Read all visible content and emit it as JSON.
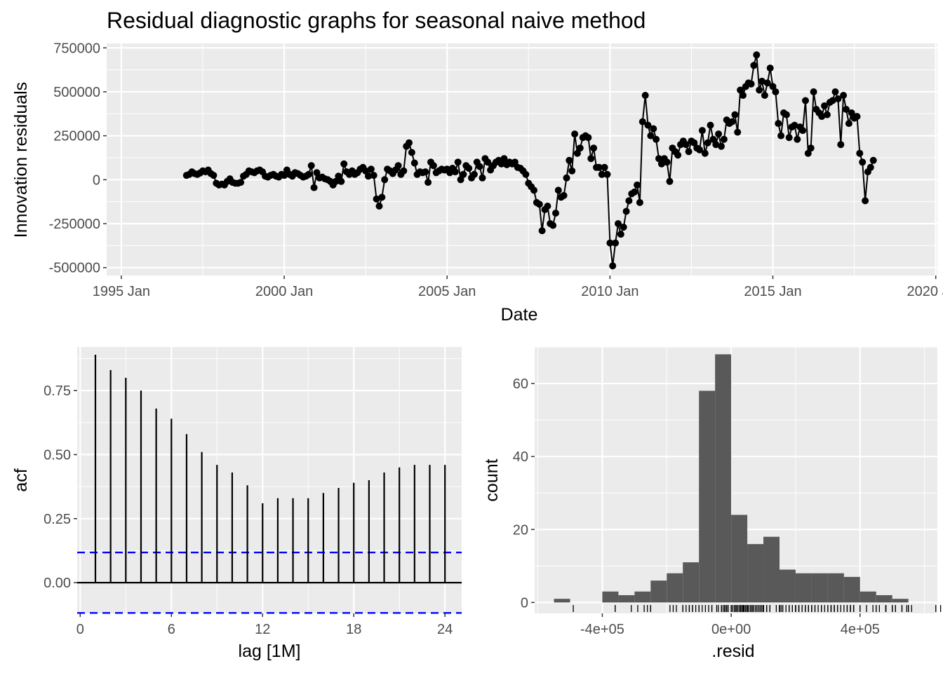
{
  "chart_data": [
    {
      "type": "line",
      "title": "Residual diagnostic graphs for seasonal naive method",
      "xlabel": "Date",
      "ylabel": "Innovation residuals",
      "xlim": [
        "1995 Jan",
        "2020 Jan"
      ],
      "ylim": [
        -500000,
        750000
      ],
      "x_ticks": [
        "1995 Jan",
        "2000 Jan",
        "2005 Jan",
        "2010 Jan",
        "2015 Jan",
        "2020 Jan"
      ],
      "y_ticks": [
        "750000",
        "500000",
        "250000",
        "0",
        "-250000",
        "-500000"
      ],
      "y_tick_values": [
        750000,
        500000,
        250000,
        0,
        -250000,
        -500000
      ],
      "grid": true,
      "x_start": "1997 Jan",
      "x_step": "1 month",
      "values": [
        25000,
        30000,
        45000,
        35000,
        30000,
        38000,
        50000,
        45000,
        55000,
        35000,
        25000,
        -20000,
        -30000,
        -25000,
        -30000,
        -10000,
        5000,
        -15000,
        -20000,
        -20000,
        -15000,
        20000,
        30000,
        50000,
        45000,
        40000,
        50000,
        55000,
        45000,
        20000,
        15000,
        25000,
        30000,
        20000,
        15000,
        30000,
        25000,
        55000,
        30000,
        20000,
        40000,
        35000,
        25000,
        15000,
        20000,
        30000,
        80000,
        -45000,
        40000,
        10000,
        15000,
        5000,
        0,
        -10000,
        -30000,
        -10000,
        20000,
        -10000,
        90000,
        45000,
        30000,
        50000,
        30000,
        40000,
        60000,
        70000,
        50000,
        20000,
        60000,
        25000,
        -110000,
        -150000,
        -100000,
        0,
        60000,
        50000,
        35000,
        55000,
        80000,
        30000,
        50000,
        190000,
        210000,
        155000,
        95000,
        30000,
        45000,
        40000,
        45000,
        -15000,
        100000,
        80000,
        40000,
        50000,
        60000,
        55000,
        60000,
        40000,
        65000,
        45000,
        100000,
        0,
        30000,
        80000,
        65000,
        10000,
        30000,
        100000,
        75000,
        10000,
        120000,
        100000,
        55000,
        80000,
        100000,
        110000,
        90000,
        120000,
        85000,
        100000,
        90000,
        100000,
        70000,
        65000,
        50000,
        30000,
        -20000,
        -40000,
        -60000,
        -130000,
        -140000,
        -290000,
        -170000,
        -150000,
        -250000,
        -260000,
        -190000,
        -60000,
        -100000,
        -90000,
        10000,
        110000,
        50000,
        260000,
        150000,
        180000,
        240000,
        250000,
        240000,
        120000,
        180000,
        70000,
        70000,
        30000,
        70000,
        30000,
        -360000,
        -490000,
        -360000,
        -250000,
        -310000,
        -270000,
        -180000,
        -120000,
        -80000,
        -70000,
        -30000,
        -130000,
        330000,
        480000,
        310000,
        250000,
        290000,
        230000,
        120000,
        90000,
        120000,
        100000,
        -10000,
        180000,
        160000,
        140000,
        200000,
        220000,
        200000,
        160000,
        220000,
        210000,
        180000,
        170000,
        280000,
        150000,
        210000,
        310000,
        230000,
        200000,
        260000,
        190000,
        230000,
        340000,
        320000,
        330000,
        370000,
        270000,
        510000,
        480000,
        530000,
        550000,
        545000,
        650000,
        710000,
        510000,
        560000,
        480000,
        550000,
        635000,
        530000,
        500000,
        320000,
        250000,
        380000,
        370000,
        240000,
        300000,
        310000,
        230000,
        300000,
        280000,
        450000,
        150000,
        180000,
        500000,
        400000,
        380000,
        360000,
        420000,
        370000,
        440000,
        450000,
        500000,
        460000,
        200000,
        480000,
        400000,
        320000,
        380000,
        350000,
        360000,
        150000,
        100000,
        -120000,
        45000,
        70000,
        110000
      ]
    },
    {
      "type": "bar",
      "xlabel": "lag [1M]",
      "ylabel": "acf",
      "xlim": [
        0,
        25
      ],
      "ylim": [
        -0.12,
        0.92
      ],
      "x_ticks": [
        "0",
        "6",
        "12",
        "18",
        "24"
      ],
      "x_tick_values": [
        0,
        6,
        12,
        18,
        24
      ],
      "y_ticks": [
        "0.75",
        "0.50",
        "0.25",
        "0.00"
      ],
      "y_tick_values": [
        0.75,
        0.5,
        0.25,
        0
      ],
      "categories": [
        1,
        2,
        3,
        4,
        5,
        6,
        7,
        8,
        9,
        10,
        11,
        12,
        13,
        14,
        15,
        16,
        17,
        18,
        19,
        20,
        21,
        22,
        23,
        24
      ],
      "values": [
        0.89,
        0.83,
        0.8,
        0.75,
        0.68,
        0.64,
        0.58,
        0.51,
        0.46,
        0.43,
        0.38,
        0.31,
        0.33,
        0.33,
        0.33,
        0.35,
        0.37,
        0.39,
        0.4,
        0.43,
        0.45,
        0.46,
        0.46,
        0.46
      ],
      "confidence_bounds": [
        0.118,
        -0.118
      ],
      "bound_color": "#0000ff",
      "grid": true
    },
    {
      "type": "bar",
      "xlabel": ".resid",
      "ylabel": "count",
      "xlim": [
        -610000,
        640000
      ],
      "ylim": [
        -3,
        70
      ],
      "x_ticks": [
        "-4e+05",
        "0e+00",
        "4e+05"
      ],
      "x_tick_values": [
        -400000,
        0,
        400000
      ],
      "y_ticks": [
        "60",
        "40",
        "20",
        "0"
      ],
      "y_tick_values": [
        60,
        40,
        20,
        0
      ],
      "bin_width": 50000,
      "bin_start": -550000,
      "counts": [
        1,
        0,
        0,
        3,
        2,
        3,
        6,
        8,
        11,
        58,
        68,
        24,
        16,
        18,
        9,
        8,
        8,
        8,
        7,
        3,
        2,
        1
      ],
      "bar_color": "#595959",
      "rug": true,
      "grid": true
    }
  ]
}
